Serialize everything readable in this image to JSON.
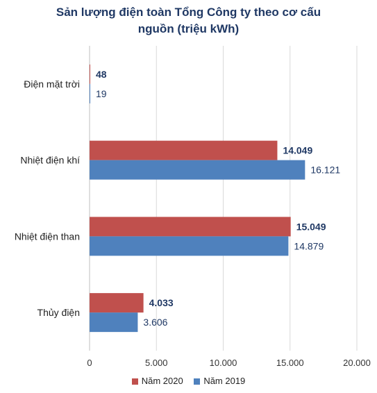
{
  "chart_data": {
    "type": "bar",
    "orientation": "horizontal",
    "title": "Sản lượng điện toàn Tổng Công ty theo cơ cấu nguồn (triệu kWh)",
    "title_lines": [
      "Sản lượng điện toàn Tổng Công ty theo cơ cấu",
      "nguồn (triệu kWh)"
    ],
    "categories": [
      "Điện mặt trời",
      "Nhiệt điện khí",
      "Nhiệt điện than",
      "Thủy điện"
    ],
    "series": [
      {
        "name": "Năm 2020",
        "color": "#c0504d",
        "values": [
          48,
          14049,
          15049,
          4033
        ],
        "labels": [
          "48",
          "14.049",
          "15.049",
          "4.033"
        ]
      },
      {
        "name": "Năm 2019",
        "color": "#4f81bd",
        "values": [
          19,
          16121,
          14879,
          3606
        ],
        "labels": [
          "19",
          "16.121",
          "14.879",
          "3.606"
        ]
      }
    ],
    "xlim": [
      0,
      20000
    ],
    "xticks": [
      0,
      5000,
      10000,
      15000,
      20000
    ],
    "xtick_labels": [
      "0",
      "5.000",
      "10.000",
      "15.000",
      "20.000"
    ],
    "grid": true,
    "legend_position": "bottom"
  }
}
